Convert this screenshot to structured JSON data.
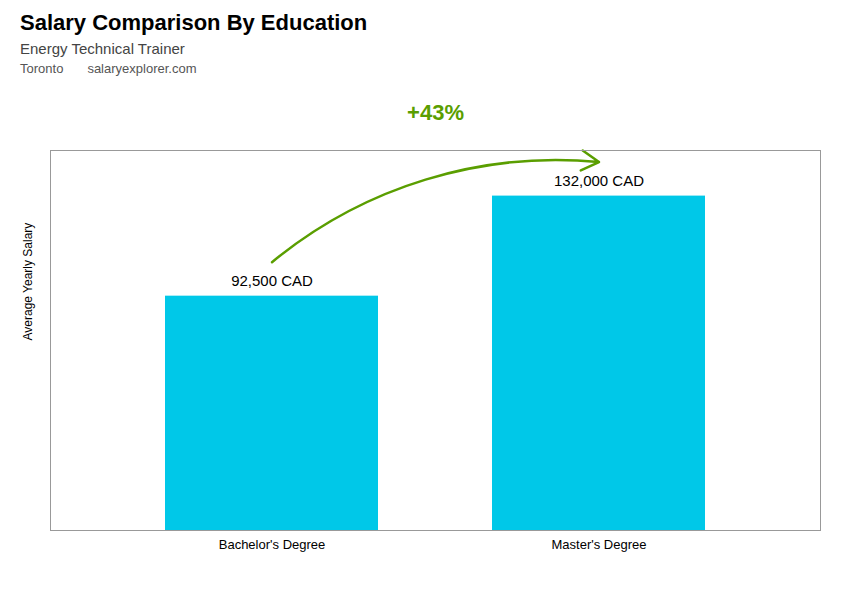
{
  "chart_data": {
    "type": "bar",
    "title": "Salary Comparison By Education",
    "subtitle": "Energy Technical Trainer",
    "annotations": [
      "Toronto",
      "salaryexplorer.com",
      "+43%"
    ],
    "ylabel": "Average Yearly Salary",
    "categories": [
      "Bachelor's Degree",
      "Master's Degree"
    ],
    "values": [
      92500,
      132000
    ],
    "value_labels": [
      "92,500 CAD",
      "132,000 CAD"
    ],
    "data_labels": true,
    "color": "#00c8e8",
    "ylim": [
      0,
      150000
    ],
    "grid": false,
    "tick_labels": "x"
  }
}
